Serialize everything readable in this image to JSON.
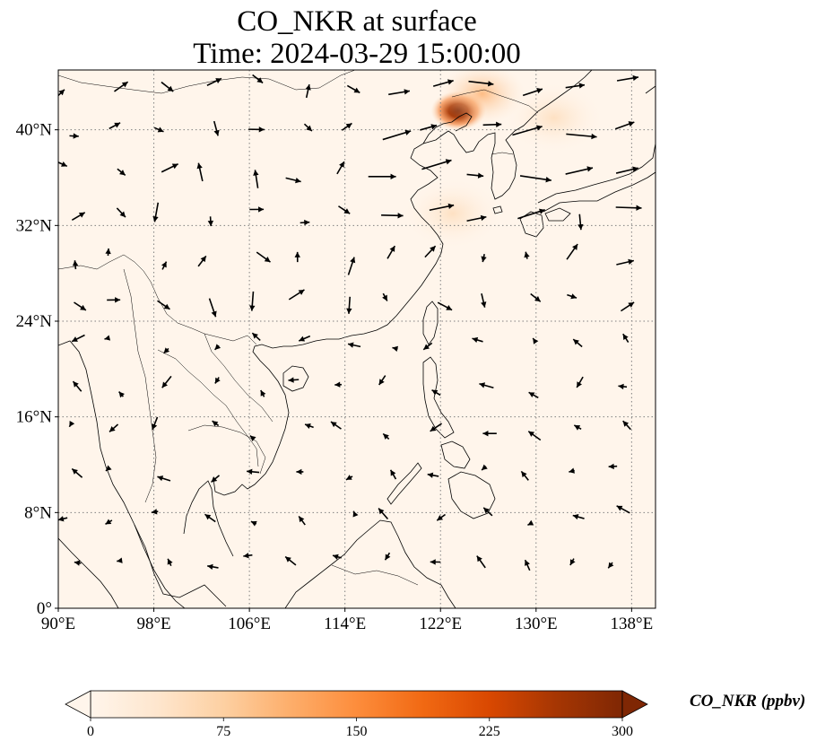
{
  "title": {
    "line1": "CO_NKR at surface",
    "line2": "Time: 2024-03-29 15:00:00"
  },
  "map": {
    "lon_range": [
      90,
      140
    ],
    "lat_range": [
      0,
      45
    ],
    "lat_ticks": [
      {
        "value": 0,
        "label": "0°"
      },
      {
        "value": 8,
        "label": "8°N"
      },
      {
        "value": 16,
        "label": "16°N"
      },
      {
        "value": 24,
        "label": "24°N"
      },
      {
        "value": 32,
        "label": "32°N"
      },
      {
        "value": 40,
        "label": "40°N"
      }
    ],
    "lon_ticks": [
      {
        "value": 90,
        "label": "90°E"
      },
      {
        "value": 98,
        "label": "98°E"
      },
      {
        "value": 106,
        "label": "106°E"
      },
      {
        "value": 114,
        "label": "114°E"
      },
      {
        "value": 122,
        "label": "122°E"
      },
      {
        "value": 130,
        "label": "130°E"
      },
      {
        "value": 138,
        "label": "138°E"
      }
    ],
    "gridlines": true,
    "background_color": "#fff5eb",
    "hotspots": [
      {
        "lon": 123.5,
        "lat": 41.6,
        "value": 300
      },
      {
        "lon": 125.5,
        "lat": 43.0,
        "value": 90
      },
      {
        "lon": 131.5,
        "lat": 41.0,
        "value": 45
      },
      {
        "lon": 123.0,
        "lat": 33.0,
        "value": 25
      }
    ]
  },
  "colorbar": {
    "label": "CO_NKR (ppbv)",
    "min": 0,
    "max": 300,
    "ticks": [
      "0",
      "75",
      "150",
      "225",
      "300"
    ],
    "colors": [
      "#fff5eb",
      "#fee6ce",
      "#fdd0a2",
      "#fdae6b",
      "#fd8d3c",
      "#f16913",
      "#d94801",
      "#a63603",
      "#7f2704"
    ],
    "extend": "both"
  }
}
